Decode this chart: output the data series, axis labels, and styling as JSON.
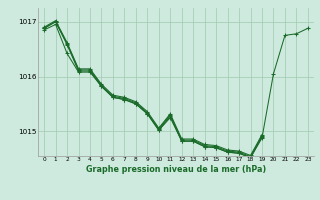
{
  "background_color": "#ceeade",
  "grid_color": "#9fc9af",
  "line_color": "#1a6b2a",
  "title": "Graphe pression niveau de la mer (hPa)",
  "xlim": [
    -0.5,
    23.5
  ],
  "ylim": [
    1014.55,
    1017.25
  ],
  "yticks": [
    1015,
    1016,
    1017
  ],
  "xticks": [
    0,
    1,
    2,
    3,
    4,
    5,
    6,
    7,
    8,
    9,
    10,
    11,
    12,
    13,
    14,
    15,
    16,
    17,
    18,
    19,
    20,
    21,
    22,
    23
  ],
  "series": [
    {
      "x": [
        0,
        1,
        2,
        3,
        4,
        5,
        6,
        7,
        8,
        9,
        10,
        11,
        12,
        13,
        14,
        15,
        16,
        17,
        18,
        19,
        20,
        21,
        22,
        23
      ],
      "y": [
        1016.85,
        1016.95,
        1016.42,
        1016.08,
        1016.08,
        1015.82,
        1015.62,
        1015.58,
        1015.5,
        1015.32,
        1015.02,
        1015.25,
        1014.82,
        1014.82,
        1014.72,
        1014.7,
        1014.62,
        1014.6,
        1014.52,
        1014.88,
        1016.05,
        1016.75,
        1016.78,
        1016.88
      ]
    },
    {
      "x": [
        0,
        1,
        2,
        3,
        4,
        5,
        6,
        7,
        8,
        9,
        10,
        11,
        12,
        13,
        14,
        15,
        16,
        17,
        18,
        19
      ],
      "y": [
        1016.88,
        1017.0,
        1016.58,
        1016.1,
        1016.1,
        1015.82,
        1015.62,
        1015.58,
        1015.5,
        1015.32,
        1015.02,
        1015.28,
        1014.82,
        1014.82,
        1014.72,
        1014.7,
        1014.62,
        1014.6,
        1014.52,
        1014.9
      ]
    },
    {
      "x": [
        0,
        1,
        2,
        3,
        4,
        5,
        6,
        7,
        8,
        9,
        10,
        11,
        12,
        13,
        14,
        15,
        16,
        17,
        18,
        19
      ],
      "y": [
        1016.88,
        1017.0,
        1016.6,
        1016.12,
        1016.12,
        1015.84,
        1015.64,
        1015.6,
        1015.52,
        1015.34,
        1015.04,
        1015.3,
        1014.84,
        1014.84,
        1014.74,
        1014.72,
        1014.64,
        1014.62,
        1014.54,
        1014.92
      ]
    },
    {
      "x": [
        0,
        1,
        2,
        3,
        4,
        5,
        6,
        7,
        8,
        9,
        10,
        11,
        12,
        13,
        14,
        15,
        16,
        17,
        18,
        19
      ],
      "y": [
        1016.9,
        1017.02,
        1016.62,
        1016.14,
        1016.14,
        1015.86,
        1015.66,
        1015.62,
        1015.54,
        1015.36,
        1015.06,
        1015.32,
        1014.86,
        1014.86,
        1014.76,
        1014.74,
        1014.66,
        1014.64,
        1014.56,
        1014.94
      ]
    }
  ]
}
